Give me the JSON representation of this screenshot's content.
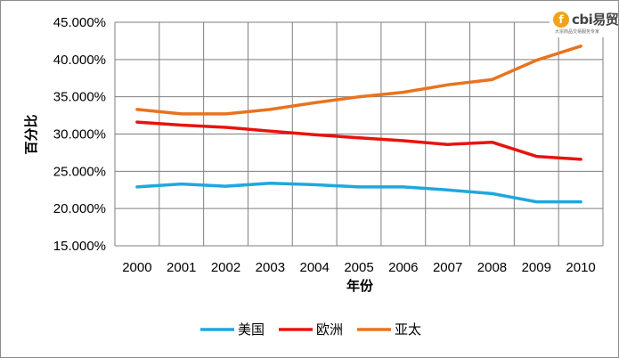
{
  "logo": {
    "mark": "f",
    "text": "cbi易贸",
    "sub": "大宗商品交易服务专家",
    "color": "#f4a21a"
  },
  "chart_data": {
    "type": "line",
    "title": "",
    "xlabel": "年份",
    "ylabel": "百分比",
    "categories": [
      "2000",
      "2001",
      "2002",
      "2003",
      "2004",
      "2005",
      "2006",
      "2007",
      "2008",
      "2009",
      "2010"
    ],
    "ylim": [
      0.15,
      0.45
    ],
    "yticks": [
      0.15,
      0.2,
      0.25,
      0.3,
      0.35,
      0.4,
      0.45
    ],
    "ytick_labels": [
      "15.000%",
      "20.000%",
      "25.000%",
      "30.000%",
      "35.000%",
      "40.000%",
      "45.000%"
    ],
    "grid": true,
    "legend": "bottom",
    "series": [
      {
        "name": "美国",
        "color": "#1fa7e0",
        "values": [
          0.229,
          0.233,
          0.23,
          0.234,
          0.232,
          0.229,
          0.229,
          0.225,
          0.22,
          0.209,
          0.209
        ]
      },
      {
        "name": "欧洲",
        "color": "#e8130f",
        "values": [
          0.316,
          0.312,
          0.309,
          0.304,
          0.299,
          0.295,
          0.291,
          0.286,
          0.289,
          0.27,
          0.266
        ]
      },
      {
        "name": "亚太",
        "color": "#e8731e",
        "values": [
          0.333,
          0.327,
          0.327,
          0.333,
          0.342,
          0.35,
          0.356,
          0.366,
          0.373,
          0.399,
          0.418
        ]
      }
    ]
  }
}
